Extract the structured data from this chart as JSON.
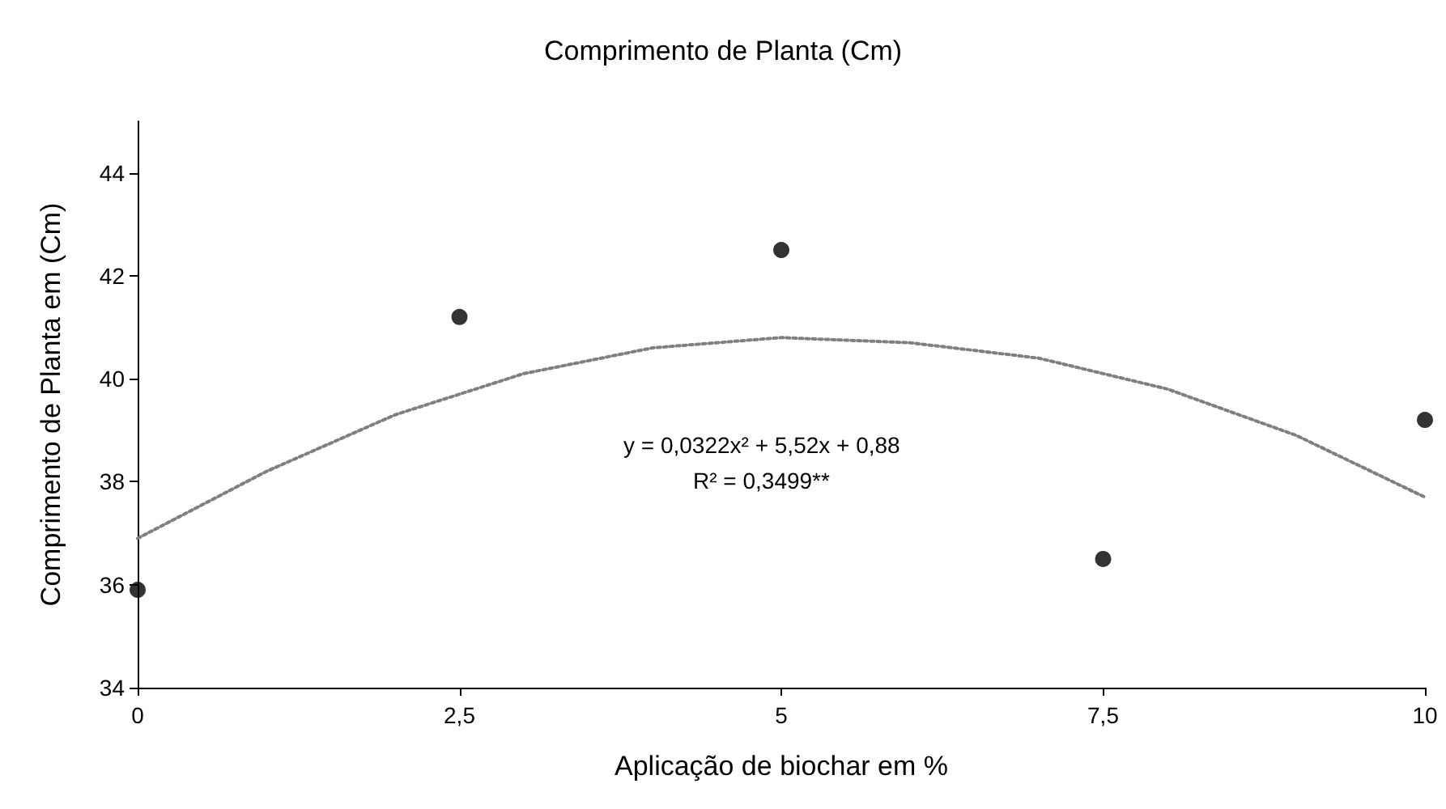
{
  "chart_data": {
    "type": "scatter",
    "title": "Comprimento de Planta (Cm)",
    "xlabel": "Aplicação de biochar em %",
    "ylabel": "Comprimento de Planta em (Cm)",
    "x": [
      0,
      2.5,
      5,
      7.5,
      10
    ],
    "series": [
      {
        "color": "#000000",
        "marker": "circle",
        "values": [
          35.9,
          41.2,
          42.5,
          36.5,
          39.2
        ]
      },
      {
        "type": "line",
        "color": "#7f7f7f",
        "line_style": "dotted",
        "marker": "none",
        "x": [
          0,
          1,
          2,
          3,
          4,
          5,
          6,
          7,
          8,
          9,
          10
        ],
        "values": [
          36.9,
          38.2,
          39.3,
          40.1,
          40.6,
          40.8,
          40.7,
          40.4,
          39.8,
          38.9,
          37.7
        ]
      }
    ],
    "annotations": [
      "y = 0,0322x² + 5,52x + 0,88",
      "R² = 0,3499**"
    ],
    "xlim": [
      0,
      10
    ],
    "xticks": [
      0,
      {
        "value": 2.5,
        "label": "2,5"
      },
      5,
      {
        "value": 7.5,
        "label": "7,5"
      },
      10
    ],
    "ylim": [
      34,
      45
    ],
    "yticks": [
      34,
      36,
      38,
      40,
      42,
      44
    ],
    "grid": false
  }
}
